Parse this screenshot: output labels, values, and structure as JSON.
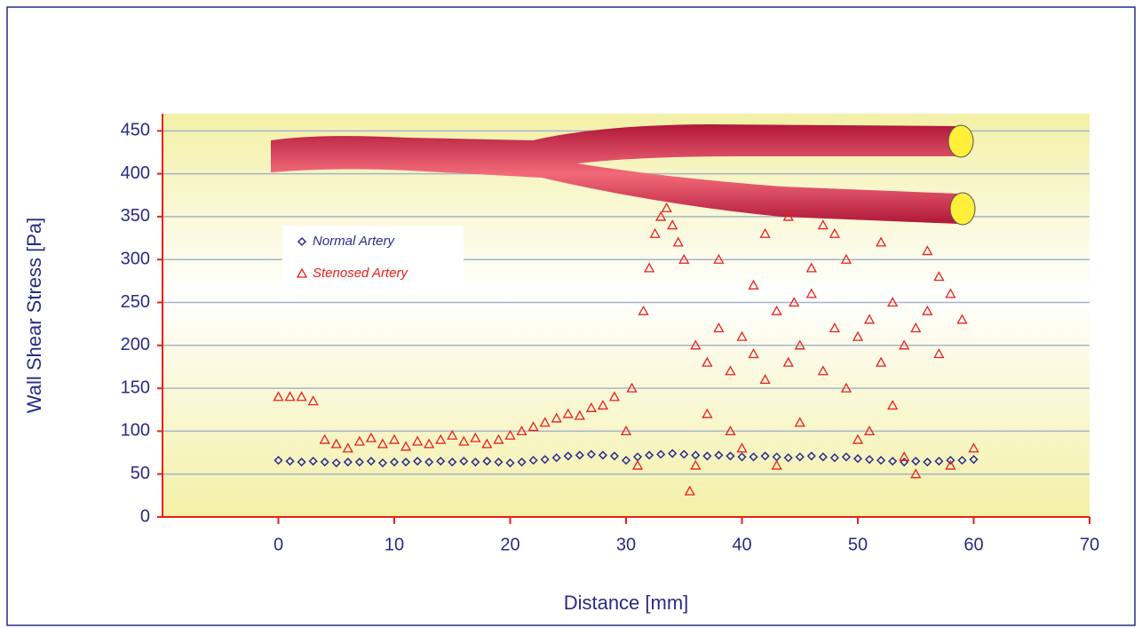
{
  "chart_data": {
    "type": "scatter",
    "x_label": "Distance [mm]",
    "y_label": "Wall Shear Stress [Pa]",
    "xlim": [
      -10,
      70
    ],
    "xticks": [
      0,
      10,
      20,
      30,
      40,
      50,
      60,
      70
    ],
    "ylim": [
      0,
      470
    ],
    "yticks": [
      0,
      50,
      100,
      150,
      200,
      250,
      300,
      350,
      400,
      450
    ],
    "grid": true,
    "axis_color": "#e8201c",
    "series": [
      {
        "name": "Normal Artery",
        "color": "#2b2b8f",
        "marker": "diamond",
        "x": [
          0,
          1,
          2,
          3,
          4,
          5,
          6,
          7,
          8,
          9,
          10,
          11,
          12,
          13,
          14,
          15,
          16,
          17,
          18,
          19,
          20,
          21,
          22,
          23,
          24,
          25,
          26,
          27,
          28,
          29,
          30,
          31,
          32,
          33,
          34,
          35,
          36,
          37,
          38,
          39,
          40,
          41,
          42,
          43,
          44,
          45,
          46,
          47,
          48,
          49,
          50,
          51,
          52,
          53,
          54,
          55,
          56,
          57,
          58,
          59,
          60
        ],
        "values": [
          66,
          65,
          64,
          65,
          64,
          63,
          64,
          64,
          65,
          63,
          64,
          64,
          65,
          64,
          65,
          64,
          65,
          64,
          65,
          64,
          63,
          64,
          66,
          67,
          69,
          71,
          72,
          73,
          72,
          71,
          66,
          70,
          72,
          73,
          74,
          73,
          72,
          71,
          72,
          71,
          70,
          70,
          71,
          70,
          69,
          70,
          71,
          70,
          69,
          70,
          68,
          67,
          66,
          65,
          64,
          65,
          64,
          65,
          66,
          66,
          67
        ]
      },
      {
        "name": "Stenosed Artery",
        "color": "#e8201c",
        "marker": "triangle",
        "x": [
          0,
          1,
          2,
          3,
          4,
          5,
          6,
          7,
          8,
          9,
          10,
          11,
          12,
          13,
          14,
          15,
          16,
          17,
          18,
          19,
          20,
          21,
          22,
          23,
          24,
          25,
          26,
          27,
          28,
          29,
          30,
          31,
          32,
          33,
          34,
          35,
          36,
          37,
          38,
          39,
          40,
          41,
          42,
          43,
          44,
          45,
          46,
          47,
          48,
          49,
          50,
          51,
          52,
          53,
          54,
          55,
          56,
          57,
          58,
          59,
          60,
          30.5,
          31.5,
          32.5,
          33.5,
          34.5,
          36,
          38,
          40,
          42,
          44,
          46,
          48,
          50,
          52,
          54,
          56,
          58,
          37,
          41,
          45,
          49,
          53,
          57,
          43,
          47,
          51,
          55,
          35.5,
          39,
          44.5
        ],
        "values": [
          140,
          140,
          140,
          135,
          90,
          85,
          80,
          88,
          92,
          85,
          90,
          82,
          88,
          85,
          90,
          95,
          88,
          92,
          85,
          90,
          95,
          100,
          105,
          110,
          115,
          120,
          118,
          127,
          130,
          140,
          100,
          60,
          290,
          350,
          340,
          300,
          200,
          180,
          220,
          170,
          210,
          190,
          160,
          240,
          180,
          200,
          260,
          170,
          220,
          150,
          210,
          230,
          180,
          250,
          200,
          220,
          240,
          190,
          260,
          230,
          80,
          150,
          240,
          330,
          360,
          320,
          60,
          300,
          80,
          330,
          350,
          290,
          330,
          90,
          320,
          70,
          310,
          60,
          120,
          270,
          110,
          300,
          130,
          280,
          60,
          340,
          100,
          50,
          30,
          100,
          250
        ]
      }
    ]
  }
}
